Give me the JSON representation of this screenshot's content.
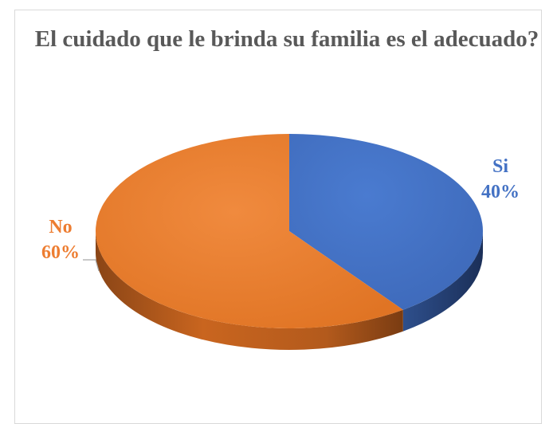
{
  "chart_data": {
    "type": "pie",
    "title": "El cuidado que le brinda su familia es el adecuado?",
    "slices": [
      {
        "label": "Si",
        "value": 40,
        "value_label": "40%",
        "color": "#4472C4"
      },
      {
        "label": "No",
        "value": 60,
        "value_label": "60%",
        "color": "#ED7D31"
      }
    ],
    "legend": "none",
    "style": "3d"
  }
}
